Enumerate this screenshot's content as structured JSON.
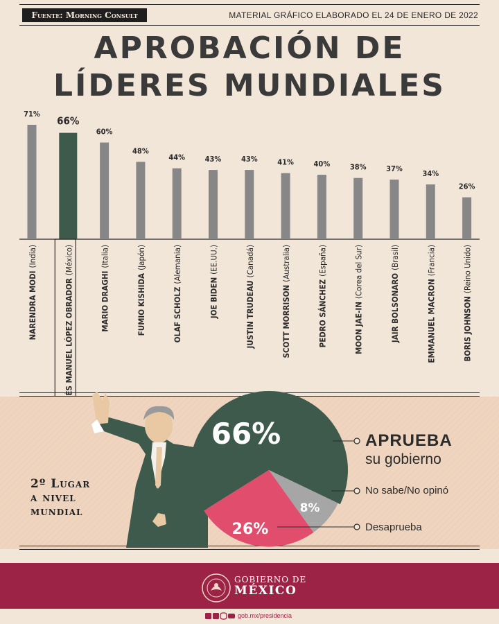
{
  "header": {
    "source": "Fuente: Morning Consult",
    "date": "MATERIAL GRÁFICO ELABORADO EL 24 DE ENERO DE 2022",
    "title_line1": "APROBACIÓN DE",
    "title_line2": "LÍDERES MUNDIALES"
  },
  "chart_data": [
    {
      "type": "bar",
      "title": "APROBACIÓN DE LÍDERES MUNDIALES",
      "unit": "%",
      "categories": [
        {
          "name": "NARENDRA MODI",
          "country": "(India)"
        },
        {
          "name": "ANDRÉS MANUEL LÓPEZ OBRADOR",
          "country": "(México)"
        },
        {
          "name": "MARIO DRAGHI",
          "country": "(Italia)"
        },
        {
          "name": "FUMIO KISHIDA",
          "country": "(Japón)"
        },
        {
          "name": "OLAF SCHOLZ",
          "country": "(Alemania)"
        },
        {
          "name": "JOE BIDEN",
          "country": "(EE.UU.)"
        },
        {
          "name": "JUSTIN TRUDEAU",
          "country": "(Canadá)"
        },
        {
          "name": "SCOTT MORRISON",
          "country": "(Australia)"
        },
        {
          "name": "PEDRO SÁNCHEZ",
          "country": "(España)"
        },
        {
          "name": "MOON JAE-IN",
          "country": "(Corea del Sur)"
        },
        {
          "name": "JAIR BOLSONARO",
          "country": "(Brasil)"
        },
        {
          "name": "EMMANUEL MACRON",
          "country": "(Francia)"
        },
        {
          "name": "BORIS JOHNSON",
          "country": "(Reino Unido)"
        }
      ],
      "values": [
        71,
        66,
        60,
        48,
        44,
        43,
        43,
        41,
        40,
        38,
        37,
        34,
        26
      ],
      "labels": [
        "71%",
        "66%",
        "60%",
        "48%",
        "44%",
        "43%",
        "43%",
        "41%",
        "40%",
        "38%",
        "37%",
        "34%",
        "26%"
      ],
      "highlight_index": 1,
      "colors": {
        "default": "#878787",
        "highlight": "#3d5a4c"
      },
      "ylim": [
        0,
        71
      ],
      "grid": false
    },
    {
      "type": "pie",
      "slices": [
        {
          "label": "APRUEBA",
          "sublabel": "su gobierno",
          "value": 66,
          "text": "66%",
          "color": "#3d5a4c"
        },
        {
          "label": "No sabe/No opinó",
          "value": 8,
          "text": "8%",
          "color": "#a6a6a6"
        },
        {
          "label": "Desaprueba",
          "value": 26,
          "text": "26%",
          "color": "#e14d6c"
        }
      ]
    }
  ],
  "ranking": {
    "line1": "2º Lugar",
    "line2": "a nivel",
    "line3": "mundial"
  },
  "footer": {
    "gov_line1": "GOBIERNO DE",
    "gov_line2": "MÉXICO",
    "url": "gob.mx/presidencia",
    "brand_color": "#9c2345"
  }
}
